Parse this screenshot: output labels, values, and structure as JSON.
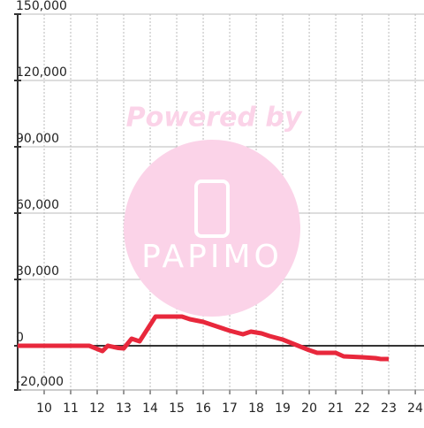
{
  "chart_data": {
    "type": "line",
    "watermark": {
      "title": "Powered by",
      "logo": "PAPIMO"
    },
    "x": [
      9,
      11.7,
      12.2,
      12.4,
      12.8,
      13.0,
      13.3,
      13.6,
      14.2,
      15.2,
      15.5,
      16,
      16.5,
      17,
      17.5,
      17.8,
      18.2,
      18.5,
      19,
      19.5,
      20,
      20.3,
      21,
      21.3,
      22,
      22.5,
      22.7,
      23
    ],
    "series": [
      {
        "color": "#e8283c",
        "values": [
          0,
          0,
          -2400,
          0,
          -1000,
          -1200,
          3200,
          2000,
          13200,
          13200,
          12000,
          10800,
          8800,
          6800,
          5200,
          6400,
          5600,
          4400,
          2800,
          400,
          -2000,
          -3200,
          -3200,
          -4800,
          -5200,
          -5600,
          -6000,
          -6000
        ]
      }
    ],
    "xlim": [
      9,
      24.33
    ],
    "xticks": [
      10,
      11,
      12,
      13,
      14,
      15,
      16,
      17,
      18,
      19,
      20,
      21,
      22,
      23,
      24
    ],
    "ylim": [
      -20000,
      150000
    ],
    "yticks": [
      {
        "value": -20000,
        "label": "-20,000"
      },
      0,
      {
        "value": 30000,
        "label": "30,000"
      },
      {
        "value": 60000,
        "label": "60,000"
      },
      {
        "value": 90000,
        "label": "90,000"
      },
      {
        "value": 120000,
        "label": "120,000"
      },
      {
        "value": 150000,
        "label": "150,000"
      }
    ],
    "grid": true
  }
}
